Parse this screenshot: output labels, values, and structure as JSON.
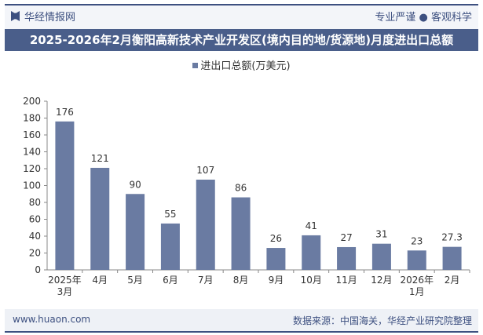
{
  "header": {
    "brand": "华经情报网",
    "slogan": "专业严谨 ● 客观科学"
  },
  "footer": {
    "website": "www.huaon.com",
    "source": "数据来源：中国海关，华经产业研究院整理"
  },
  "colors": {
    "bar": "#6a7ba2",
    "title_bg": "#4a5e8a",
    "brand": "#3d5080"
  },
  "chart_data": {
    "type": "bar",
    "title": "2025-2026年2月衡阳高新技术产业开发区(境内目的地/货源地)月度进出口总额",
    "categories": [
      [
        "2025年",
        "3月"
      ],
      [
        "4月"
      ],
      [
        "5月"
      ],
      [
        "6月"
      ],
      [
        "7月"
      ],
      [
        "8月"
      ],
      [
        "9月"
      ],
      [
        "10月"
      ],
      [
        "11月"
      ],
      [
        "12月"
      ],
      [
        "2026年",
        "1月"
      ],
      [
        "2月"
      ]
    ],
    "series": [
      {
        "name": "进出口总额(万美元)",
        "values": [
          176,
          121,
          90,
          55,
          107,
          86,
          26,
          41,
          27,
          31,
          23,
          27.3
        ]
      }
    ],
    "labels": [
      "176",
      "121",
      "90",
      "55",
      "107",
      "86",
      "26",
      "41",
      "27",
      "31",
      "23",
      "27.3"
    ],
    "ylim": [
      0,
      200
    ],
    "yticks": [
      0,
      20,
      40,
      60,
      80,
      100,
      120,
      140,
      160,
      180,
      200
    ],
    "grid": false,
    "legend": "top-center"
  }
}
